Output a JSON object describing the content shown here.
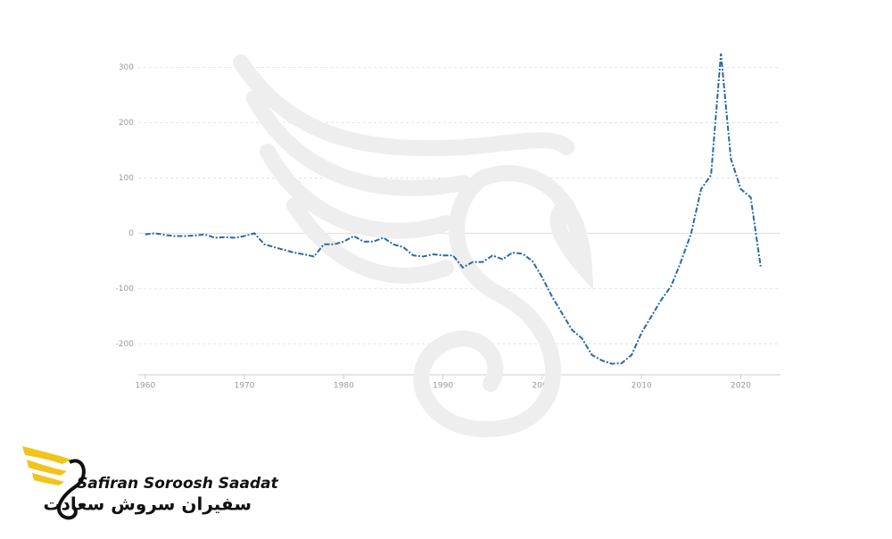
{
  "chart_data": {
    "type": "line",
    "x": [
      1960,
      1961,
      1962,
      1963,
      1964,
      1965,
      1966,
      1967,
      1968,
      1969,
      1970,
      1971,
      1972,
      1973,
      1974,
      1975,
      1976,
      1977,
      1978,
      1979,
      1980,
      1981,
      1982,
      1983,
      1984,
      1985,
      1986,
      1987,
      1988,
      1989,
      1990,
      1991,
      1992,
      1993,
      1994,
      1995,
      1996,
      1997,
      1998,
      1999,
      2000,
      2001,
      2002,
      2003,
      2004,
      2005,
      2006,
      2007,
      2008,
      2009,
      2010,
      2011,
      2012,
      2013,
      2014,
      2015,
      2016,
      2017,
      2018,
      2019,
      2020,
      2021,
      2022
    ],
    "series": [
      {
        "color": "#2a6aa3",
        "values": [
          -2,
          0,
          -3,
          -5,
          -5,
          -4,
          -2,
          -8,
          -7,
          -8,
          -5,
          0,
          -20,
          -25,
          -30,
          -35,
          -38,
          -42,
          -20,
          -20,
          -15,
          -5,
          -15,
          -15,
          -8,
          -20,
          -25,
          -40,
          -42,
          -38,
          -40,
          -40,
          -62,
          -52,
          -52,
          -40,
          -47,
          -35,
          -37,
          -50,
          -80,
          -115,
          -145,
          -175,
          -190,
          -220,
          -230,
          -236,
          -235,
          -220,
          -180,
          -150,
          -120,
          -95,
          -50,
          0,
          80,
          105,
          325,
          135,
          80,
          65,
          -60
        ]
      }
    ],
    "xlim": [
      1959.3,
      2024
    ],
    "ylim": [
      -256,
      330
    ],
    "xticks": [
      1960,
      1970,
      1980,
      1990,
      2000,
      2010,
      2020
    ],
    "yticks": [
      -200,
      -100,
      0,
      100,
      200,
      300
    ],
    "grid": true
  },
  "logo": {
    "name": "Safiran Soroosh Saadat",
    "name_fa": "سفیران سروش سعادت"
  }
}
